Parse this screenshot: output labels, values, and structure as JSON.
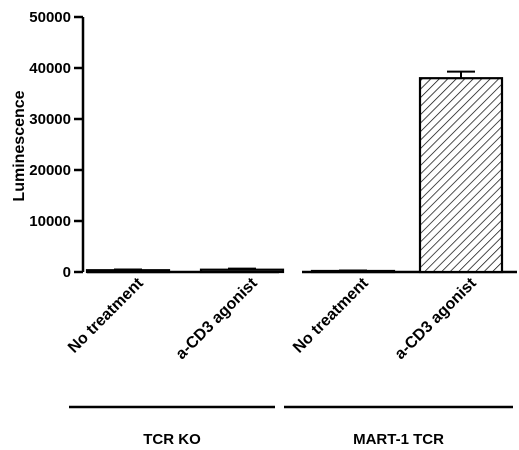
{
  "chart_data": {
    "type": "bar",
    "title": "",
    "ylabel": "Luminescence",
    "ylim": [
      0,
      50000
    ],
    "yticks": [
      0,
      10000,
      20000,
      30000,
      40000,
      50000
    ],
    "grid": false,
    "categories": [
      "No treatment",
      "a-CD3 agonist",
      "No treatment",
      "a-CD3 agonist"
    ],
    "values": [
      350,
      450,
      200,
      38000
    ],
    "errors": [
      150,
      200,
      100,
      1300
    ],
    "patterns": [
      "solid",
      "solid",
      "solid",
      "hatched"
    ],
    "groups": [
      {
        "label": "TCR KO",
        "categories": [
          0,
          1
        ]
      },
      {
        "label": "MART-1 TCR",
        "categories": [
          2,
          3
        ]
      }
    ]
  }
}
